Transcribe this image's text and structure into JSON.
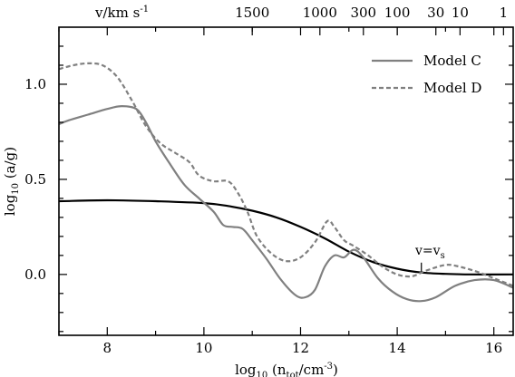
{
  "chart_data": {
    "type": "line",
    "xlabel": {
      "prefix": "log",
      "base": "10",
      "main": " (n",
      "sub": "tot",
      "unit": "/cm",
      "exp": "-3",
      "close": ")"
    },
    "ylabel": {
      "prefix": "log",
      "base": "10",
      "main": " (a/g)"
    },
    "top_axis_label": {
      "main": "v/km s",
      "exp": "-1"
    },
    "xlim": [
      7.0,
      16.4
    ],
    "ylim": [
      -0.32,
      1.3
    ],
    "x_ticks": [
      8,
      10,
      12,
      14,
      16
    ],
    "x_tick_labels": [
      "8",
      "10",
      "12",
      "14",
      "16"
    ],
    "y_ticks": [
      1.0,
      0.5,
      0.0
    ],
    "y_tick_labels": [
      "1.0",
      "0.5",
      "0.0"
    ],
    "top_ticks": [
      {
        "x": 11.0,
        "label": "1500"
      },
      {
        "x": 12.4,
        "label": "1000"
      },
      {
        "x": 13.3,
        "label": "300"
      },
      {
        "x": 14.0,
        "label": "100"
      },
      {
        "x": 14.8,
        "label": "30"
      },
      {
        "x": 15.3,
        "label": "10"
      },
      {
        "x": 16.2,
        "label": "1"
      }
    ],
    "series": [
      {
        "name": "Model C",
        "style": "solid",
        "color": "#808080",
        "points": [
          [
            7.0,
            0.79
          ],
          [
            7.2,
            0.81
          ],
          [
            7.6,
            0.84
          ],
          [
            8.0,
            0.87
          ],
          [
            8.3,
            0.885
          ],
          [
            8.6,
            0.87
          ],
          [
            8.8,
            0.8
          ],
          [
            9.0,
            0.7
          ],
          [
            9.3,
            0.58
          ],
          [
            9.6,
            0.47
          ],
          [
            9.9,
            0.4
          ],
          [
            10.2,
            0.33
          ],
          [
            10.4,
            0.26
          ],
          [
            10.6,
            0.25
          ],
          [
            10.8,
            0.24
          ],
          [
            11.0,
            0.18
          ],
          [
            11.3,
            0.08
          ],
          [
            11.6,
            -0.03
          ],
          [
            11.9,
            -0.11
          ],
          [
            12.1,
            -0.12
          ],
          [
            12.3,
            -0.08
          ],
          [
            12.5,
            0.04
          ],
          [
            12.7,
            0.1
          ],
          [
            12.9,
            0.09
          ],
          [
            13.1,
            0.13
          ],
          [
            13.3,
            0.09
          ],
          [
            13.6,
            -0.02
          ],
          [
            13.9,
            -0.09
          ],
          [
            14.2,
            -0.13
          ],
          [
            14.5,
            -0.14
          ],
          [
            14.8,
            -0.12
          ],
          [
            15.2,
            -0.06
          ],
          [
            15.6,
            -0.03
          ],
          [
            16.0,
            -0.03
          ],
          [
            16.4,
            -0.07
          ]
        ]
      },
      {
        "name": "Model D",
        "style": "dashed",
        "color": "#808080",
        "points": [
          [
            7.0,
            1.08
          ],
          [
            7.3,
            1.1
          ],
          [
            7.6,
            1.11
          ],
          [
            7.9,
            1.1
          ],
          [
            8.2,
            1.04
          ],
          [
            8.5,
            0.92
          ],
          [
            8.8,
            0.78
          ],
          [
            9.1,
            0.69
          ],
          [
            9.4,
            0.64
          ],
          [
            9.7,
            0.59
          ],
          [
            9.9,
            0.52
          ],
          [
            10.2,
            0.49
          ],
          [
            10.5,
            0.49
          ],
          [
            10.7,
            0.43
          ],
          [
            10.9,
            0.33
          ],
          [
            11.1,
            0.2
          ],
          [
            11.4,
            0.11
          ],
          [
            11.7,
            0.07
          ],
          [
            12.0,
            0.09
          ],
          [
            12.3,
            0.17
          ],
          [
            12.55,
            0.28
          ],
          [
            12.7,
            0.25
          ],
          [
            12.9,
            0.18
          ],
          [
            13.1,
            0.15
          ],
          [
            13.4,
            0.1
          ],
          [
            13.7,
            0.04
          ],
          [
            14.0,
            0.0
          ],
          [
            14.3,
            -0.01
          ],
          [
            14.6,
            0.02
          ],
          [
            15.0,
            0.05
          ],
          [
            15.3,
            0.04
          ],
          [
            15.7,
            0.01
          ],
          [
            16.0,
            -0.02
          ],
          [
            16.4,
            -0.06
          ]
        ]
      },
      {
        "name": "",
        "style": "solid",
        "color": "#000000",
        "points": [
          [
            7.0,
            0.385
          ],
          [
            8.0,
            0.39
          ],
          [
            9.0,
            0.385
          ],
          [
            10.0,
            0.375
          ],
          [
            10.5,
            0.36
          ],
          [
            11.0,
            0.335
          ],
          [
            11.5,
            0.3
          ],
          [
            12.0,
            0.25
          ],
          [
            12.5,
            0.19
          ],
          [
            13.0,
            0.12
          ],
          [
            13.5,
            0.065
          ],
          [
            14.0,
            0.03
          ],
          [
            14.5,
            0.01
          ],
          [
            15.0,
            0.003
          ],
          [
            15.5,
            0.0
          ],
          [
            16.4,
            0.0
          ]
        ]
      }
    ],
    "legend": {
      "placement": "top-right",
      "entries": [
        {
          "label": "Model C",
          "style": "solid",
          "color": "#808080"
        },
        {
          "label": "Model D",
          "style": "dashed",
          "color": "#808080"
        }
      ]
    },
    "annotation": {
      "main": "v=v",
      "sub": "s",
      "x": 14.5,
      "y": 0.005
    },
    "grid": false
  }
}
